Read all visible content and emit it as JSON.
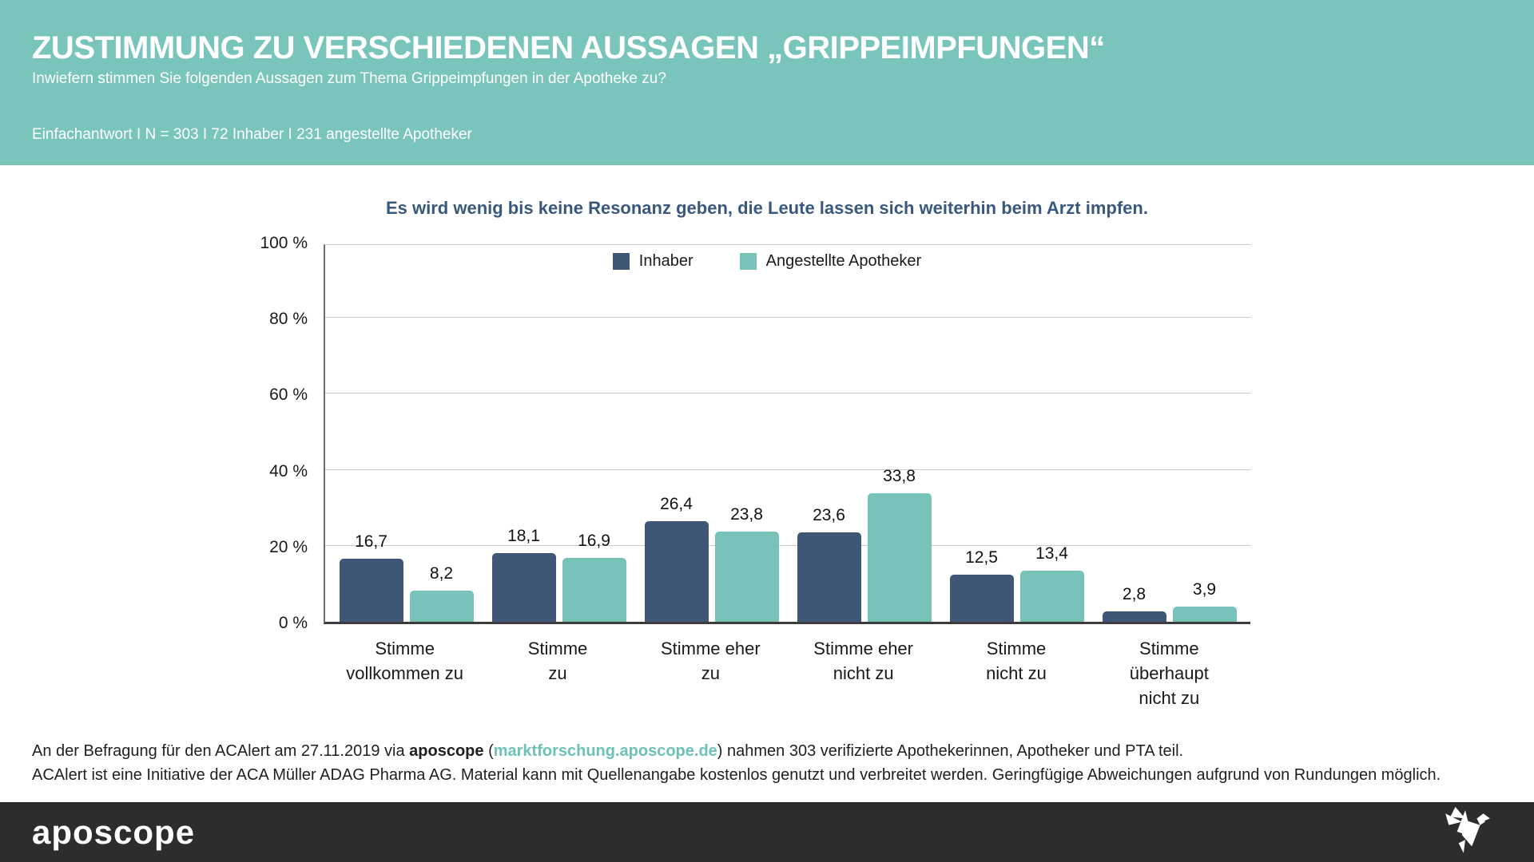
{
  "header": {
    "title": "ZUSTIMMUNG ZU VERSCHIEDENEN AUSSAGEN „GRIPPEIMPFUNGEN“",
    "subtitle": "Inwiefern stimmen Sie folgenden Aussagen zum Thema Grippeimpfungen in der Apotheke zu?",
    "meta": "Einfachantwort I N = 303 I 72 Inhaber I 231 angestellte Apotheker"
  },
  "chart_data": {
    "type": "bar",
    "title": "Es wird wenig bis keine Resonanz geben, die Leute lassen sich weiterhin beim Arzt impfen.",
    "categories": [
      "Stimme vollkommen zu",
      "Stimme zu",
      "Stimme eher zu",
      "Stimme eher nicht zu",
      "Stimme nicht zu",
      "Stimme überhaupt nicht zu"
    ],
    "category_lines": [
      [
        "Stimme",
        "vollkommen zu"
      ],
      [
        "Stimme",
        "zu"
      ],
      [
        "Stimme eher",
        "zu"
      ],
      [
        "Stimme eher",
        "nicht zu"
      ],
      [
        "Stimme",
        "nicht zu"
      ],
      [
        "Stimme",
        "überhaupt",
        "nicht zu"
      ]
    ],
    "series": [
      {
        "name": "Inhaber",
        "color": "#3f5677",
        "values": [
          16.7,
          18.1,
          26.4,
          23.6,
          12.5,
          2.8
        ]
      },
      {
        "name": "Angestellte Apotheker",
        "color": "#77c3ba",
        "values": [
          8.2,
          16.9,
          23.8,
          33.8,
          13.4,
          3.9
        ]
      }
    ],
    "ylabel": "",
    "xlabel": "",
    "ylim": [
      0,
      100
    ],
    "yticks": [
      {
        "v": 100,
        "label": "100 %"
      },
      {
        "v": 80,
        "label": "80 %"
      },
      {
        "v": 60,
        "label": "60 %"
      },
      {
        "v": 40,
        "label": "40 %"
      },
      {
        "v": 20,
        "label": "20 %"
      },
      {
        "v": 0,
        "label": "0 %"
      }
    ],
    "grid": true,
    "legend_position": "top-center",
    "decimal_separator": ","
  },
  "footnote": {
    "line1_pre": "An der Befragung für den ACAlert am 27.11.2019 via ",
    "line1_bold": "aposcope",
    "line1_open": " (",
    "line1_link": "marktforschung.aposcope.de",
    "line1_post": ") nahmen 303 verifizierte Apothekerinnen, Apotheker und PTA teil.",
    "line2": "ACAlert ist eine Initiative der ACA Müller ADAG Pharma AG. Material kann mit Quellenangabe kostenlos genutzt und verbreitet werden. Geringfügige Abweichungen aufgrund von Rundungen möglich."
  },
  "footer": {
    "logo_text": "aposcope",
    "bird_icon": "origami-crane-icon"
  },
  "colors": {
    "header_teal": "#79c5bc",
    "bar_dark_blue": "#3f5677",
    "bar_teal": "#77c3ba",
    "chart_title_navy": "#38587e",
    "link_teal": "#6cc2b9",
    "footer_charcoal": "#2b2d2e",
    "gridline_gray": "#c9c9c9"
  }
}
